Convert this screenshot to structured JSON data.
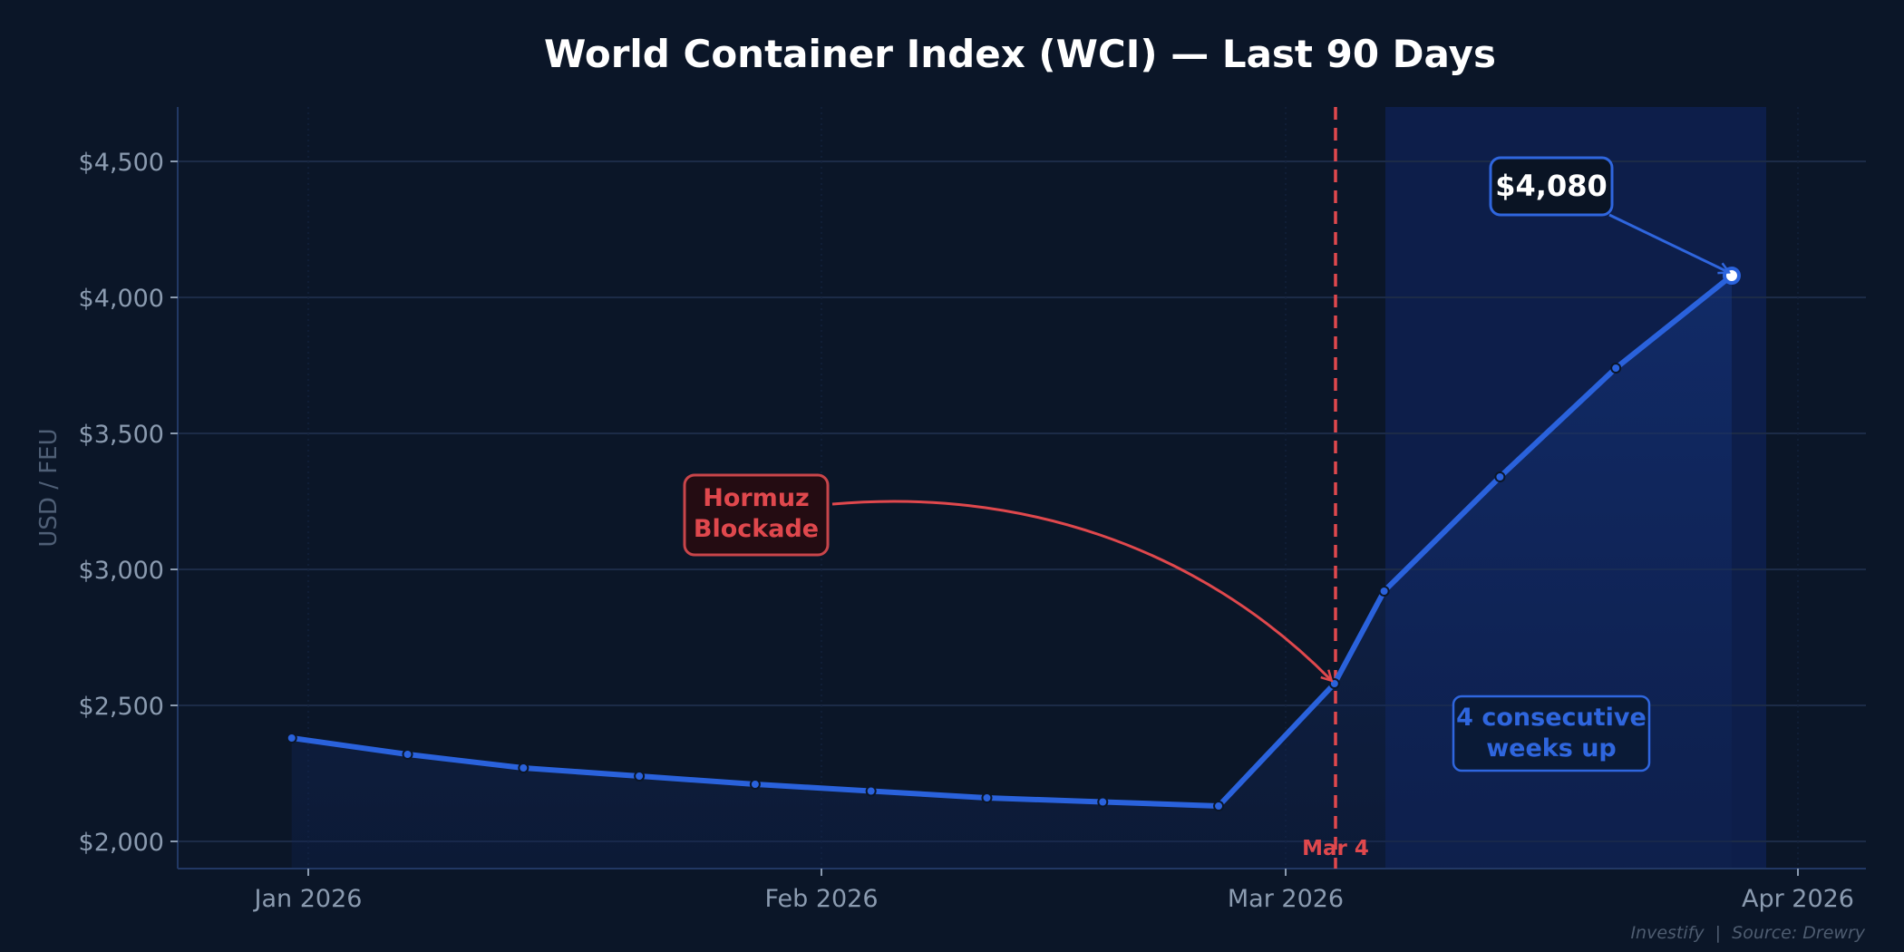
{
  "chart_data": {
    "type": "line",
    "title": "World Container Index (WCI) — Last 90 Days",
    "xlabel": "",
    "ylabel": "USD / FEU",
    "ylim": [
      1900,
      4700
    ],
    "y_ticks": [
      2000,
      2500,
      3000,
      3500,
      4000,
      4500
    ],
    "y_tick_labels": [
      "$2,000",
      "$2,500",
      "$3,000",
      "$3,500",
      "$4,000",
      "$4,500"
    ],
    "x_tick_labels": [
      "Jan 2026",
      "Feb 2026",
      "Mar 2026",
      "Apr 2026"
    ],
    "grid": true,
    "legend": null,
    "series": [
      {
        "name": "WCI",
        "color": "#2a62dc",
        "x": [
          "2025-12-31",
          "2026-01-07",
          "2026-01-14",
          "2026-01-21",
          "2026-01-28",
          "2026-02-04",
          "2026-02-11",
          "2026-02-18",
          "2026-02-25",
          "2026-03-04",
          "2026-03-07",
          "2026-03-14",
          "2026-03-21",
          "2026-03-28"
        ],
        "values": [
          2380,
          2320,
          2270,
          2240,
          2210,
          2185,
          2160,
          2145,
          2130,
          2580,
          2920,
          3340,
          3740,
          4080
        ]
      }
    ],
    "annotations": [
      {
        "type": "vline",
        "x": "2026-03-04",
        "label": "Mar 4",
        "color": "#e0484d",
        "style": "dashed"
      },
      {
        "type": "callout",
        "text": [
          "Hormuz",
          "Blockade"
        ],
        "points_to": "2026-03-04",
        "color": "#e0484d"
      },
      {
        "type": "callout",
        "text": [
          "$4,080"
        ],
        "points_to": "2026-03-28",
        "color": "#ffffff"
      },
      {
        "type": "shaded_region",
        "x_start": "2026-03-07",
        "x_end": "2026-03-30",
        "label": [
          "4 consecutive",
          "weeks up"
        ],
        "color": "#2f66de"
      }
    ]
  },
  "header": {
    "title": "World Container Index (WCI) — Last 90 Days"
  },
  "axes": {
    "y_label": "USD / FEU",
    "y_ticks": [
      "$4,500",
      "$4,000",
      "$3,500",
      "$3,000",
      "$2,500",
      "$2,000"
    ],
    "x_ticks": [
      "Jan 2026",
      "Feb 2026",
      "Mar 2026",
      "Apr 2026"
    ]
  },
  "annotations": {
    "hormuz_line1": "Hormuz",
    "hormuz_line2": "Blockade",
    "peak_label": "$4,080",
    "streak_line1": "4 consecutive",
    "streak_line2": "weeks up",
    "event_date": "Mar 4"
  },
  "footer": {
    "credit": "Investify  |  Source: Drewry"
  },
  "colors": {
    "background": "#0b1628",
    "line": "#2a62dc",
    "event": "#e0484d",
    "grid": "#1c2b47",
    "shade": "#0e2050"
  }
}
